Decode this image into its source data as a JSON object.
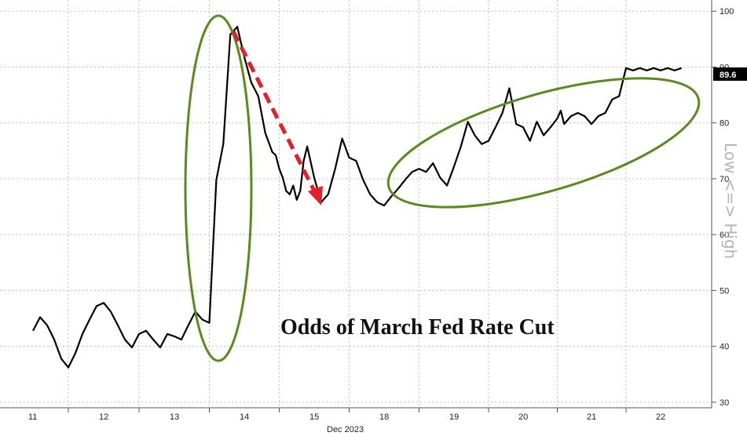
{
  "chart_data": {
    "type": "line",
    "title": "",
    "annotation": "Odds of March Fed Rate Cut",
    "xlabel": "Dec 2023",
    "ylabel": "Low <=> High",
    "x_ticks": [
      "11",
      "12",
      "13",
      "14",
      "15",
      "18",
      "19",
      "20",
      "21",
      "22"
    ],
    "y_ticks": [
      "30",
      "40",
      "50",
      "60",
      "70",
      "80",
      "90",
      "100"
    ],
    "ylim": [
      29,
      102
    ],
    "last_value_label": "89.6",
    "grid": true,
    "colors": {
      "line": "#000000",
      "ellipse": "#5a8a1e",
      "arrow": "#e0202a",
      "badge": "#000000"
    },
    "series": [
      {
        "x": [
          0,
          0.1,
          0.2,
          0.3,
          0.4,
          0.5,
          0.6,
          0.7,
          0.8,
          0.9,
          1.0,
          1.1,
          1.2,
          1.3,
          1.4,
          1.5,
          1.6,
          1.7,
          1.8,
          1.9,
          2.0,
          2.1,
          2.2,
          2.3,
          2.4,
          2.5,
          2.6,
          2.7,
          2.8,
          2.9,
          3.0,
          3.1,
          3.2,
          3.3,
          3.4,
          3.45,
          3.5,
          3.55,
          3.6,
          3.65,
          3.7,
          3.75,
          3.8,
          3.85,
          3.9,
          4.0,
          4.1,
          4.2,
          4.3,
          4.4,
          4.5,
          4.6,
          4.7,
          4.8,
          4.9,
          5.0,
          5.1,
          5.2,
          5.3,
          5.4,
          5.5,
          5.6,
          5.7,
          5.8,
          5.9,
          6.0,
          6.1,
          6.2,
          6.3,
          6.4,
          6.5,
          6.6,
          6.7,
          6.8,
          6.9,
          7.0,
          7.1,
          7.2,
          7.3,
          7.4,
          7.5,
          7.55,
          7.6,
          7.7,
          7.8,
          7.9,
          8.0,
          8.1,
          8.2,
          8.3,
          8.4,
          8.5,
          8.6,
          8.7,
          8.8,
          8.9,
          9.0,
          9.1,
          9.2,
          9.3
        ],
        "values": [
          43,
          45,
          44,
          41,
          38,
          36,
          39,
          42,
          45,
          47,
          48,
          46,
          44,
          41,
          40,
          42,
          43,
          41,
          40,
          42,
          42,
          41,
          44,
          46,
          45,
          44,
          70,
          76,
          96,
          97,
          92,
          87,
          85,
          78,
          75,
          74,
          72,
          70,
          68,
          67,
          69,
          66,
          68,
          73,
          76,
          70,
          66,
          67,
          72,
          77,
          74,
          73,
          70,
          67,
          66,
          65,
          67,
          68,
          70,
          71,
          72,
          71,
          73,
          70,
          69,
          72,
          76,
          80,
          78,
          76,
          77,
          79,
          82,
          86,
          80,
          79,
          77,
          80,
          78,
          79,
          81,
          82,
          80,
          81,
          82,
          81,
          80,
          81,
          82,
          84,
          85,
          89.6,
          89.6,
          89.6,
          89.6,
          89.6,
          89.6,
          89.6,
          89.6,
          89.6
        ]
      }
    ]
  }
}
